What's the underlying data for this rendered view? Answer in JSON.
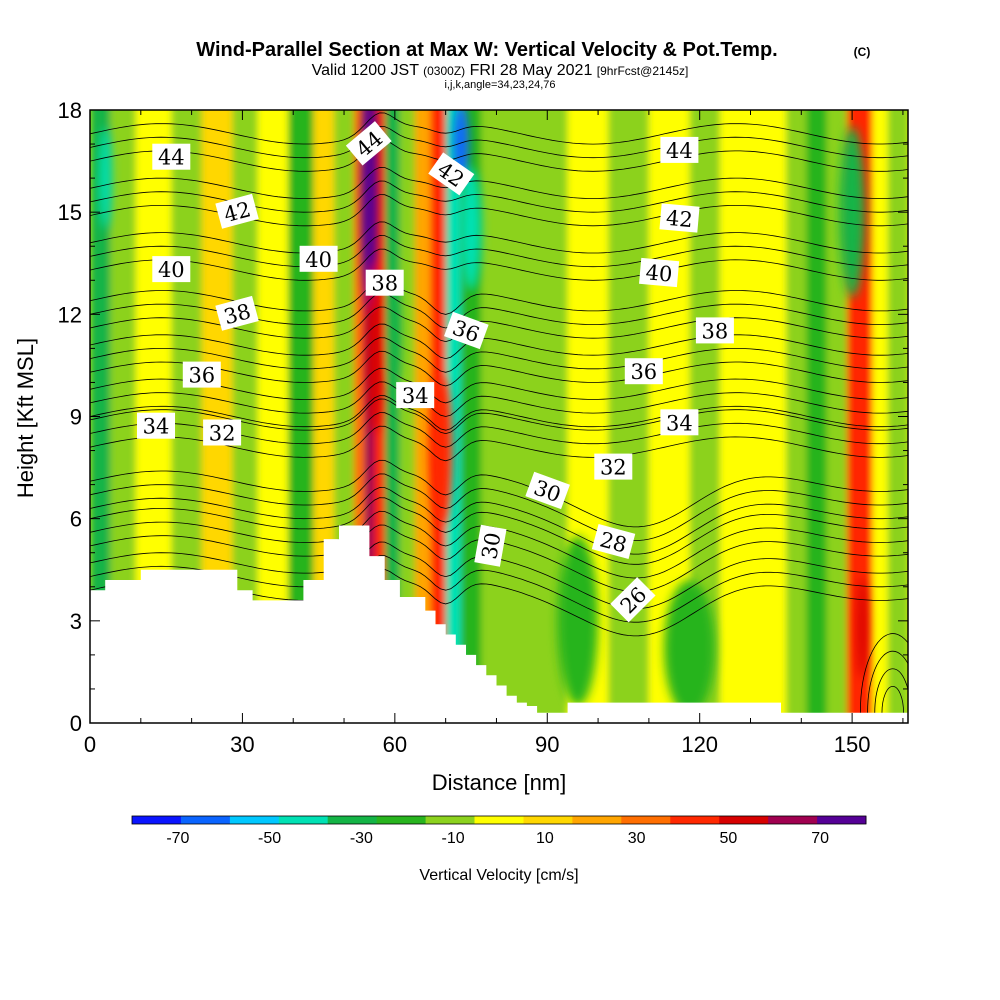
{
  "chart_data": {
    "type": "heatmap",
    "title": "Wind-Parallel Section at Max W: Vertical Velocity & Pot.Temp.",
    "title_mark": "(C)",
    "subtitle": {
      "prefix": "Valid 1200 JST",
      "utc": "(0300Z)",
      "date": "FRI 28 May 2021",
      "forecast": "[9hrFcst@2145z]"
    },
    "subtitle2": "i,j,k,angle=34,23,24,76",
    "xlabel": "Distance [nm]",
    "ylabel": "Height [Kft MSL]",
    "xlim": [
      0,
      161
    ],
    "ylim": [
      0,
      18
    ],
    "x_ticks": [
      "0",
      "30",
      "60",
      "90",
      "120",
      "150"
    ],
    "x_tick_values": [
      0,
      30,
      60,
      90,
      120,
      150
    ],
    "y_ticks": [
      "0",
      "3",
      "6",
      "9",
      "12",
      "15",
      "18"
    ],
    "y_tick_values": [
      0,
      3,
      6,
      9,
      12,
      15,
      18
    ],
    "colorbar": {
      "label": "Vertical Velocity [cm/s]",
      "tick_labels": [
        "-70",
        "-50",
        "-30",
        "-10",
        "10",
        "30",
        "50",
        "70"
      ],
      "tick_values": [
        -70,
        -50,
        -30,
        -10,
        10,
        30,
        50,
        70
      ],
      "range": [
        -80,
        80
      ],
      "colors": [
        "#0a14ff",
        "#0a64ff",
        "#00c8ff",
        "#00e1b4",
        "#14b446",
        "#28b41e",
        "#8cd21e",
        "#ffff00",
        "#ffd700",
        "#ffa500",
        "#ff6e00",
        "#ff2800",
        "#d70000",
        "#a00050",
        "#550096"
      ]
    },
    "terrain": {
      "x": [
        0,
        3,
        3,
        10,
        10,
        19,
        19,
        29,
        29,
        32,
        32,
        42,
        42,
        46,
        46,
        49,
        49,
        55,
        55,
        58,
        58,
        61,
        61,
        66,
        66,
        68,
        68,
        70,
        70,
        72,
        72,
        74,
        74,
        76,
        76,
        78,
        78,
        80,
        80,
        82,
        82,
        84,
        84,
        86,
        86,
        88,
        88,
        90,
        90,
        92,
        92,
        94,
        94,
        136,
        136,
        142,
        142,
        161
      ],
      "y": [
        3.9,
        3.9,
        4.2,
        4.2,
        4.5,
        4.5,
        4.5,
        4.5,
        3.9,
        3.9,
        3.6,
        3.6,
        4.2,
        4.2,
        5.4,
        5.4,
        5.8,
        5.8,
        4.9,
        4.9,
        4.2,
        4.2,
        3.7,
        3.7,
        3.3,
        3.3,
        2.9,
        2.9,
        2.6,
        2.6,
        2.3,
        2.3,
        2.0,
        2.0,
        1.7,
        1.7,
        1.4,
        1.4,
        1.1,
        1.1,
        0.8,
        0.8,
        0.6,
        0.6,
        0.5,
        0.5,
        0.3,
        0.3,
        0.3,
        0.3,
        0.3,
        0.3,
        0.6,
        0.6,
        0.3,
        0.3,
        0.3,
        0.3
      ]
    },
    "velocity_columns": [
      {
        "x0": 0,
        "x1": 4,
        "value": -30
      },
      {
        "x0": 4,
        "x1": 9,
        "value": -10
      },
      {
        "x0": 9,
        "x1": 16,
        "value": 0
      },
      {
        "x0": 16,
        "x1": 22,
        "value": -10
      },
      {
        "x0": 22,
        "x1": 28,
        "value": 10
      },
      {
        "x0": 28,
        "x1": 33,
        "value": -10
      },
      {
        "x0": 33,
        "x1": 39,
        "value": 0
      },
      {
        "x0": 39,
        "x1": 44,
        "value": -20
      },
      {
        "x0": 44,
        "x1": 48,
        "value": 10
      },
      {
        "x0": 48,
        "x1": 52,
        "value": -10
      },
      {
        "x0": 52,
        "x1": 54,
        "value": 30
      },
      {
        "x0": 54,
        "x1": 56,
        "value": 60
      },
      {
        "x0": 56,
        "x1": 58,
        "value": 40
      },
      {
        "x0": 58,
        "x1": 61,
        "value": -30
      },
      {
        "x0": 61,
        "x1": 64,
        "value": -10
      },
      {
        "x0": 64,
        "x1": 67,
        "value": 20
      },
      {
        "x0": 67,
        "x1": 70,
        "value": 45
      },
      {
        "x0": 70,
        "x1": 73,
        "value": -40
      },
      {
        "x0": 73,
        "x1": 77,
        "value": -20
      },
      {
        "x0": 77,
        "x1": 84,
        "value": -10
      },
      {
        "x0": 84,
        "x1": 94,
        "value": -10
      },
      {
        "x0": 94,
        "x1": 102,
        "value": 0
      },
      {
        "x0": 102,
        "x1": 110,
        "value": -10
      },
      {
        "x0": 110,
        "x1": 118,
        "value": 0
      },
      {
        "x0": 118,
        "x1": 124,
        "value": -10
      },
      {
        "x0": 124,
        "x1": 131,
        "value": 0
      },
      {
        "x0": 131,
        "x1": 137,
        "value": 0
      },
      {
        "x0": 137,
        "x1": 141,
        "value": -10
      },
      {
        "x0": 141,
        "x1": 145,
        "value": -20
      },
      {
        "x0": 145,
        "x1": 149,
        "value": -10
      },
      {
        "x0": 149,
        "x1": 154,
        "value": 40
      },
      {
        "x0": 154,
        "x1": 157,
        "value": 0
      },
      {
        "x0": 157,
        "x1": 161,
        "value": -10
      }
    ],
    "velocity_blobs": [
      {
        "x": 55,
        "y": 15.5,
        "rx": 1.5,
        "ry": 3.5,
        "value": 75
      },
      {
        "x": 56,
        "y": 11.0,
        "rx": 1.5,
        "ry": 2.5,
        "value": 55
      },
      {
        "x": 69,
        "y": 8.0,
        "rx": 2.2,
        "ry": 2.2,
        "value": 45
      },
      {
        "x": 73,
        "y": 17.0,
        "rx": 1.5,
        "ry": 1.2,
        "value": -65
      },
      {
        "x": 75,
        "y": 14.5,
        "rx": 2.0,
        "ry": 1.8,
        "value": -45
      },
      {
        "x": 60,
        "y": 11.5,
        "rx": 1.0,
        "ry": 1.5,
        "value": -35
      },
      {
        "x": 3,
        "y": 16.0,
        "rx": 1.2,
        "ry": 1.5,
        "value": -40
      },
      {
        "x": 150,
        "y": 15.0,
        "rx": 2.5,
        "ry": 2.5,
        "value": -30
      },
      {
        "x": 118,
        "y": 2.2,
        "rx": 5.0,
        "ry": 2.0,
        "value": -20
      },
      {
        "x": 96,
        "y": 3.0,
        "rx": 4.0,
        "ry": 2.5,
        "value": -20
      },
      {
        "x": 152,
        "y": 2.8,
        "rx": 1.0,
        "ry": 1.5,
        "value": 50
      }
    ],
    "theta_isolines": [
      {
        "value": 44,
        "y0": 16.9
      },
      {
        "value": 42,
        "y0": 15.3
      },
      {
        "value": 40,
        "y0": 13.7
      },
      {
        "value": 38,
        "y0": 12.0
      },
      {
        "value": 36,
        "y0": 10.7
      },
      {
        "value": 34,
        "y0": 9.4
      },
      {
        "value": 32,
        "y0": 8.5
      },
      {
        "value": 30,
        "y0": 6.7
      },
      {
        "value": 28,
        "y0": 5.6
      },
      {
        "value": 26,
        "y0": 4.3
      }
    ],
    "contour_labels": [
      {
        "text": "44",
        "x": 16,
        "y": 16.6,
        "angle": 0
      },
      {
        "text": "44",
        "x": 55,
        "y": 17.0,
        "angle": -40
      },
      {
        "text": "42",
        "x": 29,
        "y": 15.0,
        "angle": -15
      },
      {
        "text": "42",
        "x": 71,
        "y": 16.1,
        "angle": 35
      },
      {
        "text": "44",
        "x": 116,
        "y": 16.8,
        "angle": 0
      },
      {
        "text": "42",
        "x": 116,
        "y": 14.8,
        "angle": 5
      },
      {
        "text": "40",
        "x": 16,
        "y": 13.3,
        "angle": 0
      },
      {
        "text": "40",
        "x": 45,
        "y": 13.6,
        "angle": 0
      },
      {
        "text": "38",
        "x": 58,
        "y": 12.9,
        "angle": 0
      },
      {
        "text": "40",
        "x": 112,
        "y": 13.2,
        "angle": 5
      },
      {
        "text": "38",
        "x": 29,
        "y": 12.0,
        "angle": -15
      },
      {
        "text": "36",
        "x": 74,
        "y": 11.5,
        "angle": 20
      },
      {
        "text": "38",
        "x": 123,
        "y": 11.5,
        "angle": 0
      },
      {
        "text": "36",
        "x": 22,
        "y": 10.2,
        "angle": 0
      },
      {
        "text": "36",
        "x": 109,
        "y": 10.3,
        "angle": 0
      },
      {
        "text": "34",
        "x": 64,
        "y": 9.6,
        "angle": 0
      },
      {
        "text": "34",
        "x": 13,
        "y": 8.7,
        "angle": 0
      },
      {
        "text": "32",
        "x": 26,
        "y": 8.5,
        "angle": 0
      },
      {
        "text": "34",
        "x": 116,
        "y": 8.8,
        "angle": 0
      },
      {
        "text": "32",
        "x": 103,
        "y": 7.5,
        "angle": 0
      },
      {
        "text": "30",
        "x": 90,
        "y": 6.8,
        "angle": 20
      },
      {
        "text": "30",
        "x": 79,
        "y": 5.2,
        "angle": -80
      },
      {
        "text": "28",
        "x": 103,
        "y": 5.3,
        "angle": 15
      },
      {
        "text": "26",
        "x": 107,
        "y": 3.6,
        "angle": -45
      }
    ],
    "grid": false,
    "legend": "colorbar-bottom"
  }
}
